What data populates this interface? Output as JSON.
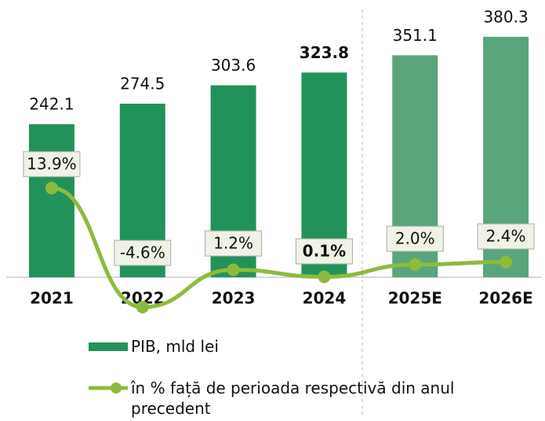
{
  "chart_data": {
    "type": "bar",
    "categories": [
      "2021",
      "2022",
      "2023",
      "2024",
      "2025E",
      "2026E"
    ],
    "series": [
      {
        "name": "PIB, mld lei",
        "type": "bar",
        "color": "#23925a",
        "colors": [
          "#23925a",
          "#23925a",
          "#23925a",
          "#23925a",
          "#5aa57c",
          "#5aa57c"
        ],
        "values": [
          242.1,
          274.5,
          303.6,
          323.8,
          351.1,
          380.3
        ]
      },
      {
        "name": "în % față de perioada respectivă din anul precedent",
        "type": "line",
        "color": "#8cbb3c",
        "axis": "y2",
        "values": [
          13.9,
          -4.6,
          1.2,
          0.1,
          2.0,
          2.4
        ],
        "value_labels": [
          "13.9%",
          "-4.6%",
          "1.2%",
          "0.1%",
          "2.0%",
          "2.4%"
        ]
      }
    ],
    "ylim": [
      -58.4,
      426.1
    ],
    "y2lim": [
      -5.7,
      41.9
    ]
  }
}
